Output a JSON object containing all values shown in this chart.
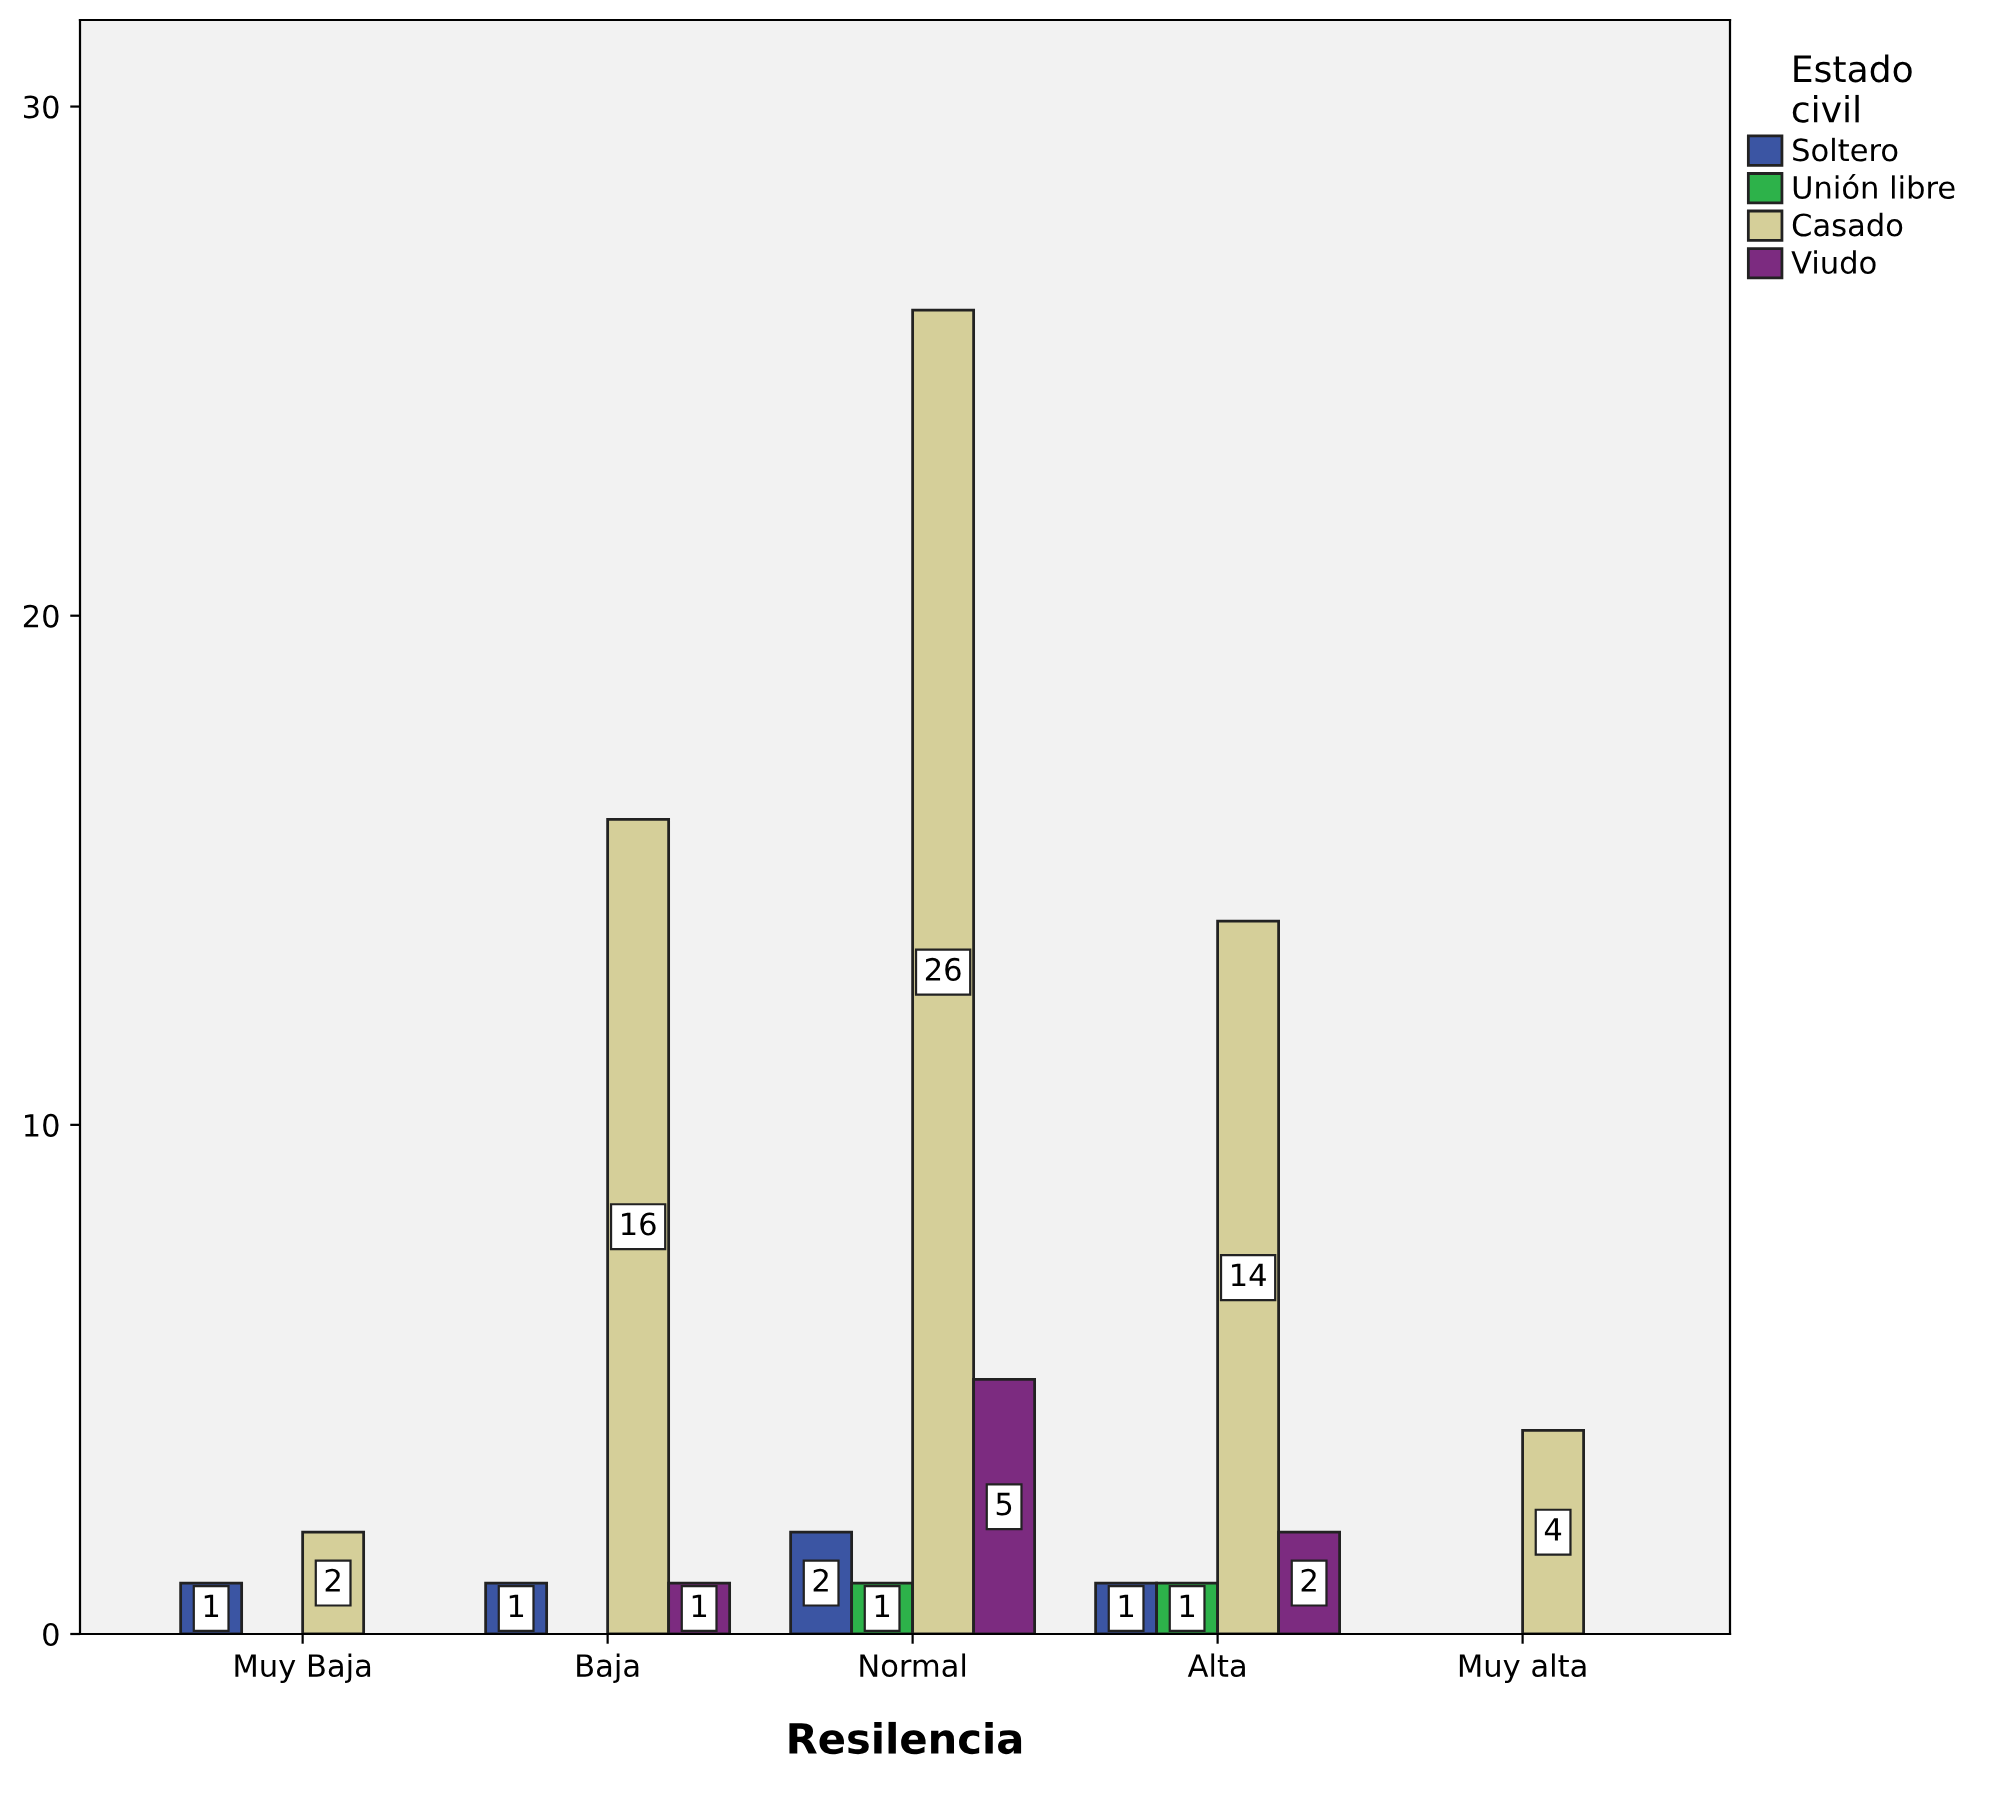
{
  "chart_data": {
    "type": "bar",
    "xlabel": "Resilencia",
    "legend_title": "Estado\ncivil",
    "categories": [
      "Muy Baja",
      "Baja",
      "Normal",
      "Alta",
      "Muy alta"
    ],
    "series": [
      {
        "name": "Soltero",
        "color": "#3b55a3",
        "values": [
          1,
          1,
          2,
          1,
          null
        ]
      },
      {
        "name": "Unión libre",
        "color": "#2db24a",
        "values": [
          null,
          null,
          1,
          1,
          null
        ]
      },
      {
        "name": "Casado",
        "color": "#d5cf99",
        "values": [
          2,
          16,
          26,
          14,
          4
        ]
      },
      {
        "name": "Viudo",
        "color": "#7c2b80",
        "values": [
          null,
          1,
          5,
          2,
          null
        ]
      }
    ],
    "ylim": [
      0,
      31.7
    ],
    "yticks": [
      0,
      10,
      20,
      30
    ],
    "grid": false,
    "legend": "top right",
    "data_labels": true
  }
}
